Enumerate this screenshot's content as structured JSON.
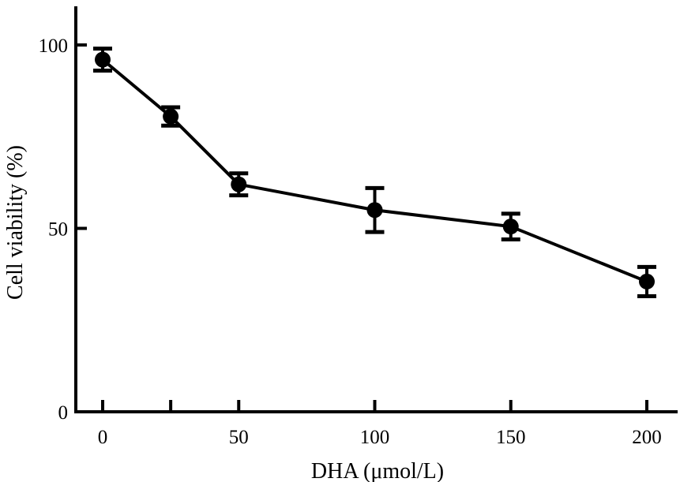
{
  "chart_data": {
    "type": "line",
    "title": "",
    "xlabel": "DHA (μmol/L)",
    "ylabel": "Cell viability (%)",
    "xlim": [
      -10,
      210
    ],
    "ylim": [
      0,
      110
    ],
    "x_ticks": [
      0,
      50,
      100,
      150,
      200
    ],
    "x_tick_labels": [
      "0",
      "50",
      "100",
      "150",
      "200"
    ],
    "x_minor_ticks": [
      25
    ],
    "y_ticks": [
      0,
      50,
      100
    ],
    "y_tick_labels": [
      "0",
      "50",
      "100"
    ],
    "grid": false,
    "legend": "none",
    "color": "#000000",
    "series": [
      {
        "x": [
          0,
          25,
          50,
          100,
          150,
          200
        ],
        "y": [
          96,
          80.5,
          62,
          55,
          50.5,
          35.5
        ],
        "error": [
          3,
          2.5,
          3,
          6,
          3.5,
          4
        ]
      }
    ]
  }
}
